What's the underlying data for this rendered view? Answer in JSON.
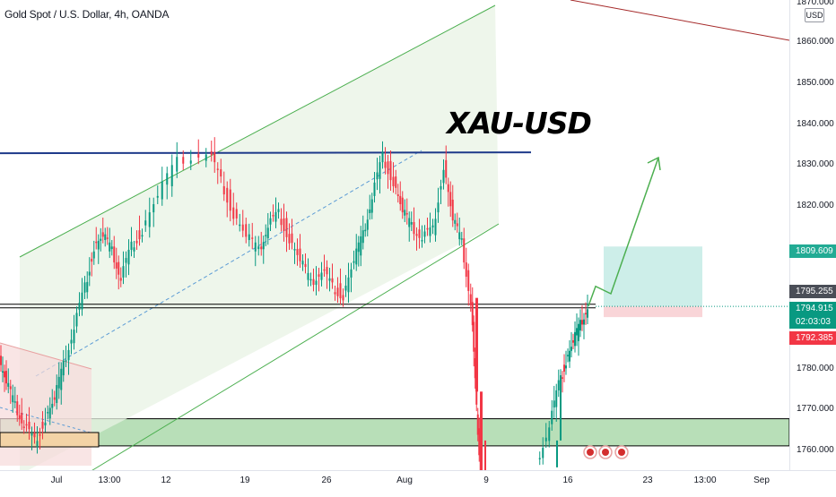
{
  "header": {
    "symbol": "Gold Spot / U.S. Dollar, 4h, OANDA"
  },
  "annotation": {
    "text": "XAU-USD"
  },
  "price_axis": {
    "currency": "USD",
    "ticks": [
      "1870.000",
      "1860.000",
      "1850.000",
      "1840.000",
      "1830.000",
      "1820.000",
      "1780.000",
      "1770.000",
      "1760.000"
    ],
    "tags": {
      "take_profit": "1809.609",
      "resistance": "1795.255",
      "last_price": "1794.915",
      "countdown": "02:03:03",
      "stop_loss": "1792.385"
    }
  },
  "time_axis": {
    "ticks": [
      "Jul",
      "13:00",
      "12",
      "19",
      "26",
      "Aug",
      "9",
      "16",
      "23",
      "13:00",
      "Sep"
    ]
  },
  "colors": {
    "up": "#089981",
    "down": "#f23645",
    "channel": "#4caf50",
    "resistance_line": "#1e3a8a",
    "support_zone": "#b8dfb8",
    "profit_zone": "#cdeee9",
    "loss_zone": "#f9d5d8"
  },
  "chart_data": {
    "type": "candlestick",
    "symbol": "XAUUSD",
    "timeframe": "4h",
    "ylim": [
      1756,
      1874
    ],
    "x_ticks": [
      "Jul",
      "13:00",
      "12",
      "19",
      "26",
      "Aug",
      "9",
      "16",
      "23",
      "13:00",
      "Sep"
    ],
    "y_ticks": [
      1760,
      1770,
      1780,
      1820,
      1830,
      1840,
      1850,
      1860,
      1870
    ],
    "levels": {
      "resistance": 1832.5,
      "support_line": 1795.0,
      "take_profit": 1809.609,
      "entry": 1794.915,
      "stop_loss": 1792.385,
      "support_zone": [
        1762,
        1768
      ]
    },
    "price_path_close": [
      1782,
      1776,
      1770,
      1766,
      1762,
      1768,
      1772,
      1780,
      1790,
      1800,
      1810,
      1812,
      1808,
      1802,
      1810,
      1814,
      1822,
      1830,
      1833,
      1826,
      1818,
      1812,
      1808,
      1815,
      1818,
      1812,
      1806,
      1800,
      1804,
      1800,
      1798,
      1806,
      1812,
      1822,
      1832,
      1826,
      1818,
      1814,
      1812,
      1814,
      1830,
      1816,
      1810,
      1796,
      1770,
      1750,
      1746,
      1756,
      1766,
      1776,
      1782,
      1786,
      1790,
      1795
    ],
    "projection": [
      1795,
      1798,
      1830
    ]
  }
}
